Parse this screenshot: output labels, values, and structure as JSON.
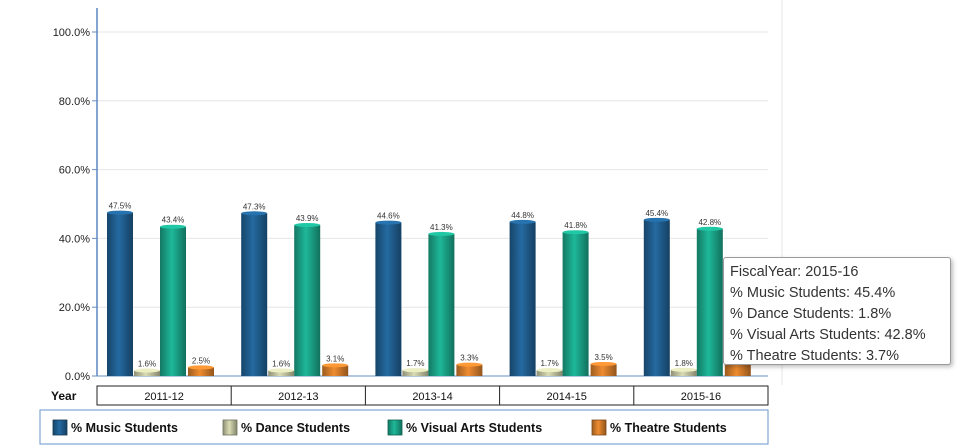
{
  "chart_data": {
    "type": "bar",
    "categories": [
      "2011-12",
      "2012-13",
      "2013-14",
      "2014-15",
      "2015-16"
    ],
    "category_axis_title": "Year",
    "series": [
      {
        "name": "% Music Students",
        "color": "#1f5c8c",
        "values": [
          47.5,
          47.3,
          44.6,
          44.8,
          45.4
        ],
        "labels": [
          "47.5%",
          "47.3%",
          "44.6%",
          "44.8%",
          "45.4%"
        ]
      },
      {
        "name": "% Dance Students",
        "color": "#bdbf9c",
        "values": [
          1.6,
          1.6,
          1.7,
          1.7,
          1.8
        ],
        "labels": [
          "1.6%",
          "1.6%",
          "1.7%",
          "1.7%",
          "1.8%"
        ]
      },
      {
        "name": "% Visual Arts Students",
        "color": "#1aa085",
        "values": [
          43.4,
          43.9,
          41.3,
          41.8,
          42.8
        ],
        "labels": [
          "43.4%",
          "43.9%",
          "41.3%",
          "41.8%",
          "42.8%"
        ]
      },
      {
        "name": "% Theatre Students",
        "color": "#d07a2a",
        "values": [
          2.5,
          3.1,
          3.3,
          3.5,
          3.7
        ],
        "labels": [
          "2.5%",
          "3.1%",
          "3.3%",
          "3.5%",
          ""
        ]
      }
    ],
    "ylim": [
      0,
      100
    ],
    "yticks": [
      0,
      20,
      40,
      60,
      80,
      100
    ],
    "ytick_labels": [
      "0.0%",
      "20.0%",
      "40.0%",
      "60.0%",
      "80.0%",
      "100.0%"
    ],
    "grid": true,
    "legend_position": "bottom"
  },
  "tooltip": {
    "lines": [
      "FiscalYear: 2015-16",
      "% Music Students: 45.4%",
      "% Dance Students: 1.8%",
      "% Visual Arts Students: 42.8%",
      "% Theatre Students: 3.7%"
    ]
  }
}
